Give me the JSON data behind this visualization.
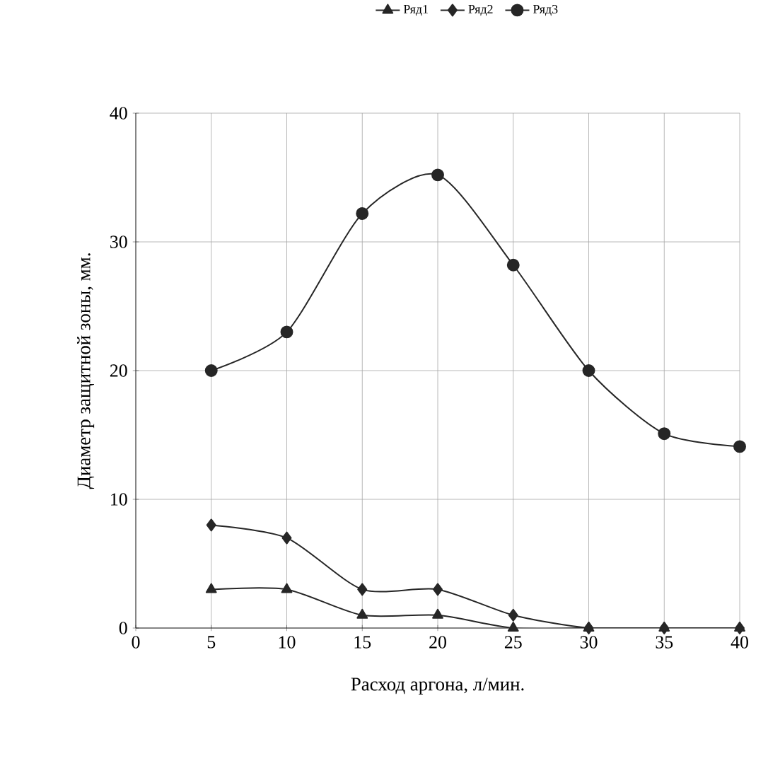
{
  "chart_data": {
    "type": "line",
    "xlabel": "Расход аргона, л/мин.",
    "ylabel": "Диаметр защитной зоны, мм.",
    "x": [
      5,
      10,
      15,
      20,
      25,
      30,
      35,
      40
    ],
    "series": [
      {
        "name": "Ряд1",
        "color": "#262626",
        "marker": "triangle",
        "values": [
          3,
          3,
          1,
          1,
          0,
          0,
          0,
          0
        ]
      },
      {
        "name": "Ряд2",
        "color": "#262626",
        "marker": "diamond",
        "values": [
          8,
          7,
          3,
          3,
          1,
          0,
          0,
          0
        ]
      },
      {
        "name": "Ряд3",
        "color": "#262626",
        "marker": "circle",
        "values": [
          20,
          23,
          32.2,
          35.2,
          28.2,
          20,
          15.1,
          14.1
        ]
      }
    ],
    "xlim": [
      0,
      40
    ],
    "xticks": [
      0,
      5,
      10,
      15,
      20,
      25,
      30,
      35,
      40
    ],
    "ylim": [
      0,
      40
    ],
    "yticks": [
      0,
      10,
      20,
      30,
      40
    ],
    "grid": true,
    "legend": "top",
    "line_style": "solid"
  }
}
